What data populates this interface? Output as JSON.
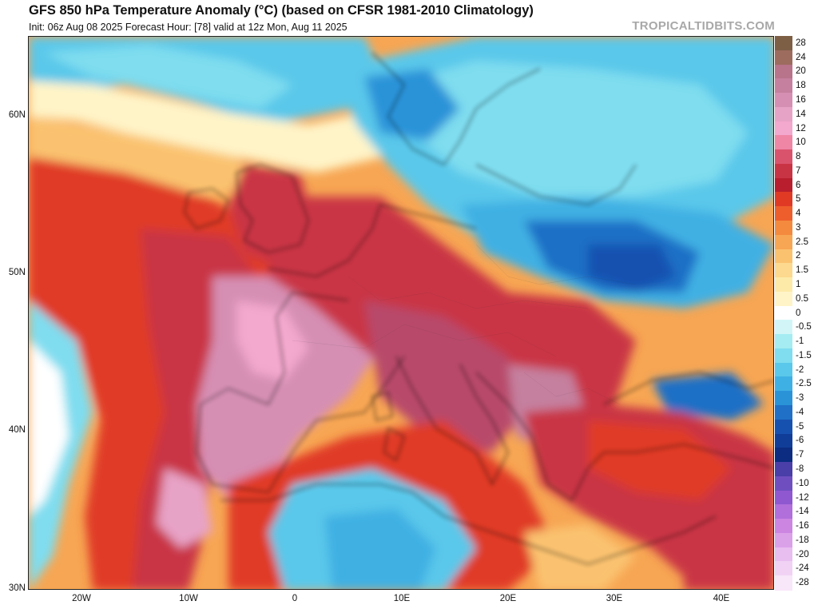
{
  "header": {
    "title": "GFS 850 hPa Temperature Anomaly (°C) (based on CFSR 1981-2010 Climatology)",
    "subtitle": "Init: 06z Aug 08 2025   Forecast Hour: [78]   valid at 12z Mon, Aug 11 2025",
    "credit": "TROPICALTIDBITS.COM"
  },
  "map": {
    "lat_labels": [
      "60N",
      "50N",
      "40N",
      "30N"
    ],
    "lon_labels": [
      "20W",
      "10W",
      "0",
      "10E",
      "20E",
      "30E",
      "40E"
    ]
  },
  "legend": {
    "labels": [
      "28",
      "24",
      "20",
      "18",
      "16",
      "14",
      "12",
      "10",
      "8",
      "7",
      "6",
      "5",
      "4",
      "3",
      "2.5",
      "2",
      "1.5",
      "1",
      "0.5",
      "0",
      "-0.5",
      "-1",
      "-1.5",
      "-2",
      "-2.5",
      "-3",
      "-4",
      "-5",
      "-6",
      "-7",
      "-8",
      "-10",
      "-12",
      "-14",
      "-16",
      "-18",
      "-20",
      "-24",
      "-28"
    ],
    "colors": [
      "#7d5f46",
      "#9e6b5f",
      "#b8748a",
      "#c5809f",
      "#d58fb3",
      "#e7a3c6",
      "#f3a8cd",
      "#ef86a6",
      "#d9536c",
      "#c93444",
      "#b81e2d",
      "#e03a25",
      "#ee5e2c",
      "#f48a3e",
      "#f7a653",
      "#fac26f",
      "#fcd98e",
      "#fdeaa9",
      "#fff4c8",
      "#ffffff",
      "#d2f6f8",
      "#a4ecf2",
      "#7fddef",
      "#5ac8ea",
      "#3fb0e3",
      "#2a93d8",
      "#1f70c6",
      "#1751b0",
      "#103d98",
      "#0b2c80",
      "#4a3ea8",
      "#6f4fc0",
      "#8f58d0",
      "#b06fda",
      "#cc86e2",
      "#dba1e8",
      "#e8bdef",
      "#f1d2f4",
      "#f8e6f9"
    ]
  }
}
